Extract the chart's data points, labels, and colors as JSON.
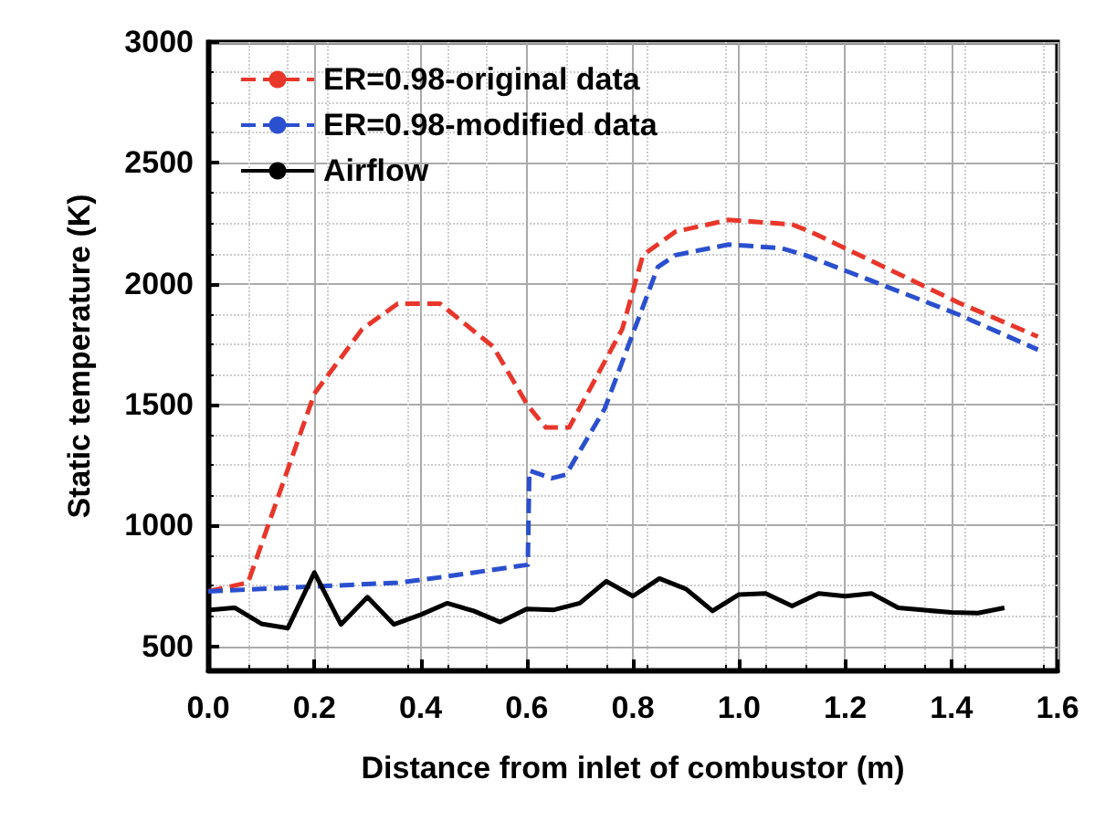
{
  "chart_data": {
    "type": "line",
    "xlabel": "Distance from inlet of combustor (m)",
    "ylabel": "Static temperature (K)",
    "xlim": [
      0,
      1.6
    ],
    "xticks": [
      {
        "value": 0,
        "label": "0.0"
      },
      {
        "value": 0.2,
        "label": "0.2"
      },
      {
        "value": 0.4,
        "label": "0.4"
      },
      {
        "value": 0.6,
        "label": "0.6"
      },
      {
        "value": 0.8,
        "label": "0.8"
      },
      {
        "value": 1.0,
        "label": "1.0"
      },
      {
        "value": 1.2,
        "label": "1.2"
      },
      {
        "value": 1.4,
        "label": "1.4"
      },
      {
        "value": 1.6,
        "label": "1.6"
      }
    ],
    "ylim": [
      400,
      3000
    ],
    "yticks": [
      500,
      1000,
      1500,
      2000,
      2500,
      3000
    ],
    "grid": true,
    "legend": "top left",
    "marker": "none",
    "series": [
      {
        "name": "ER=0.98-original data",
        "color": "#e8362a",
        "line_style": "dashed",
        "x": [
          0,
          0.075,
          0.2,
          0.29,
          0.357,
          0.437,
          0.537,
          0.602,
          0.636,
          0.68,
          0.78,
          0.819,
          0.88,
          0.98,
          1.1,
          1.135,
          1.413,
          1.563
        ],
        "values": [
          727,
          763,
          1545,
          1812,
          1917,
          1917,
          1739,
          1496,
          1405,
          1405,
          1812,
          2118,
          2215,
          2264,
          2245,
          2215,
          1922,
          1781
        ]
      },
      {
        "name": "ER=0.98-modified data",
        "color": "#2a4fcf",
        "line_style": "dashed",
        "x": [
          0,
          0.069,
          0.2,
          0.357,
          0.447,
          0.602,
          0.605,
          0.647,
          0.674,
          0.747,
          0.847,
          0.88,
          0.98,
          1.08,
          1.125,
          1.413,
          1.563
        ],
        "values": [
          727,
          734,
          747,
          763,
          788,
          837,
          1227,
          1195,
          1210,
          1483,
          2069,
          2118,
          2162,
          2147,
          2118,
          1873,
          1727
        ]
      },
      {
        "name": "Airflow",
        "color": "#000000",
        "line_style": "solid",
        "x": [
          0,
          0.05,
          0.1,
          0.15,
          0.2,
          0.25,
          0.3,
          0.35,
          0.4,
          0.45,
          0.5,
          0.55,
          0.6,
          0.65,
          0.7,
          0.75,
          0.8,
          0.85,
          0.9,
          0.95,
          1.0,
          1.05,
          1.1,
          1.15,
          1.2,
          1.25,
          1.3,
          1.35,
          1.4,
          1.45,
          1.5
        ],
        "values": [
          649,
          659,
          593,
          575,
          805,
          590,
          703,
          590,
          630,
          678,
          646,
          600,
          654,
          650,
          678,
          769,
          707,
          780,
          737,
          646,
          714,
          718,
          666,
          718,
          707,
          718,
          659,
          649,
          640,
          637,
          659
        ]
      }
    ]
  }
}
